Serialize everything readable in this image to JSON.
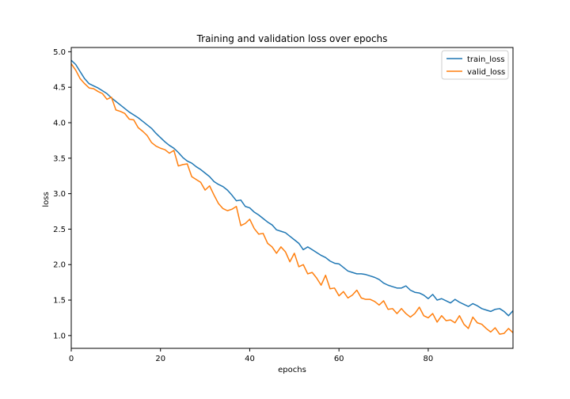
{
  "chart_data": {
    "type": "line",
    "title": "Training and validation loss over epochs",
    "xlabel": "epochs",
    "ylabel": "loss",
    "xlim": [
      0,
      99
    ],
    "ylim": [
      0.82,
      5.06
    ],
    "xticks": [
      0,
      20,
      40,
      60,
      80
    ],
    "yticks": [
      1.0,
      1.5,
      2.0,
      2.5,
      3.0,
      3.5,
      4.0,
      4.5,
      5.0
    ],
    "grid": false,
    "legend_position": "top-right",
    "series": [
      {
        "name": "train_loss",
        "color": "#1f77b4",
        "values": [
          4.88,
          4.82,
          4.72,
          4.62,
          4.55,
          4.52,
          4.49,
          4.45,
          4.41,
          4.35,
          4.3,
          4.25,
          4.2,
          4.15,
          4.11,
          4.07,
          4.02,
          3.97,
          3.92,
          3.85,
          3.79,
          3.73,
          3.68,
          3.64,
          3.58,
          3.51,
          3.46,
          3.43,
          3.38,
          3.34,
          3.29,
          3.24,
          3.17,
          3.13,
          3.1,
          3.05,
          2.98,
          2.9,
          2.91,
          2.82,
          2.8,
          2.74,
          2.7,
          2.65,
          2.6,
          2.56,
          2.49,
          2.47,
          2.45,
          2.4,
          2.35,
          2.3,
          2.21,
          2.25,
          2.21,
          2.17,
          2.13,
          2.1,
          2.05,
          2.02,
          2.01,
          1.96,
          1.91,
          1.89,
          1.87,
          1.87,
          1.86,
          1.84,
          1.82,
          1.79,
          1.74,
          1.71,
          1.69,
          1.67,
          1.67,
          1.7,
          1.64,
          1.61,
          1.6,
          1.57,
          1.52,
          1.58,
          1.5,
          1.52,
          1.49,
          1.46,
          1.51,
          1.47,
          1.44,
          1.41,
          1.45,
          1.42,
          1.38,
          1.36,
          1.34,
          1.37,
          1.38,
          1.34,
          1.28,
          1.35
        ]
      },
      {
        "name": "valid_loss",
        "color": "#ff7f0e",
        "values": [
          4.83,
          4.74,
          4.62,
          4.55,
          4.49,
          4.48,
          4.44,
          4.41,
          4.33,
          4.36,
          4.18,
          4.16,
          4.13,
          4.05,
          4.04,
          3.93,
          3.88,
          3.82,
          3.72,
          3.67,
          3.64,
          3.62,
          3.57,
          3.61,
          3.39,
          3.41,
          3.42,
          3.24,
          3.2,
          3.16,
          3.05,
          3.11,
          2.98,
          2.86,
          2.79,
          2.76,
          2.78,
          2.82,
          2.55,
          2.58,
          2.64,
          2.51,
          2.43,
          2.44,
          2.3,
          2.25,
          2.16,
          2.25,
          2.18,
          2.04,
          2.16,
          1.97,
          2.0,
          1.87,
          1.89,
          1.81,
          1.71,
          1.85,
          1.66,
          1.67,
          1.56,
          1.62,
          1.53,
          1.57,
          1.64,
          1.53,
          1.51,
          1.51,
          1.48,
          1.43,
          1.49,
          1.37,
          1.38,
          1.31,
          1.38,
          1.31,
          1.26,
          1.31,
          1.4,
          1.28,
          1.25,
          1.31,
          1.19,
          1.28,
          1.21,
          1.22,
          1.18,
          1.28,
          1.16,
          1.1,
          1.26,
          1.18,
          1.16,
          1.1,
          1.05,
          1.11,
          1.02,
          1.03,
          1.1,
          1.04
        ]
      }
    ]
  }
}
